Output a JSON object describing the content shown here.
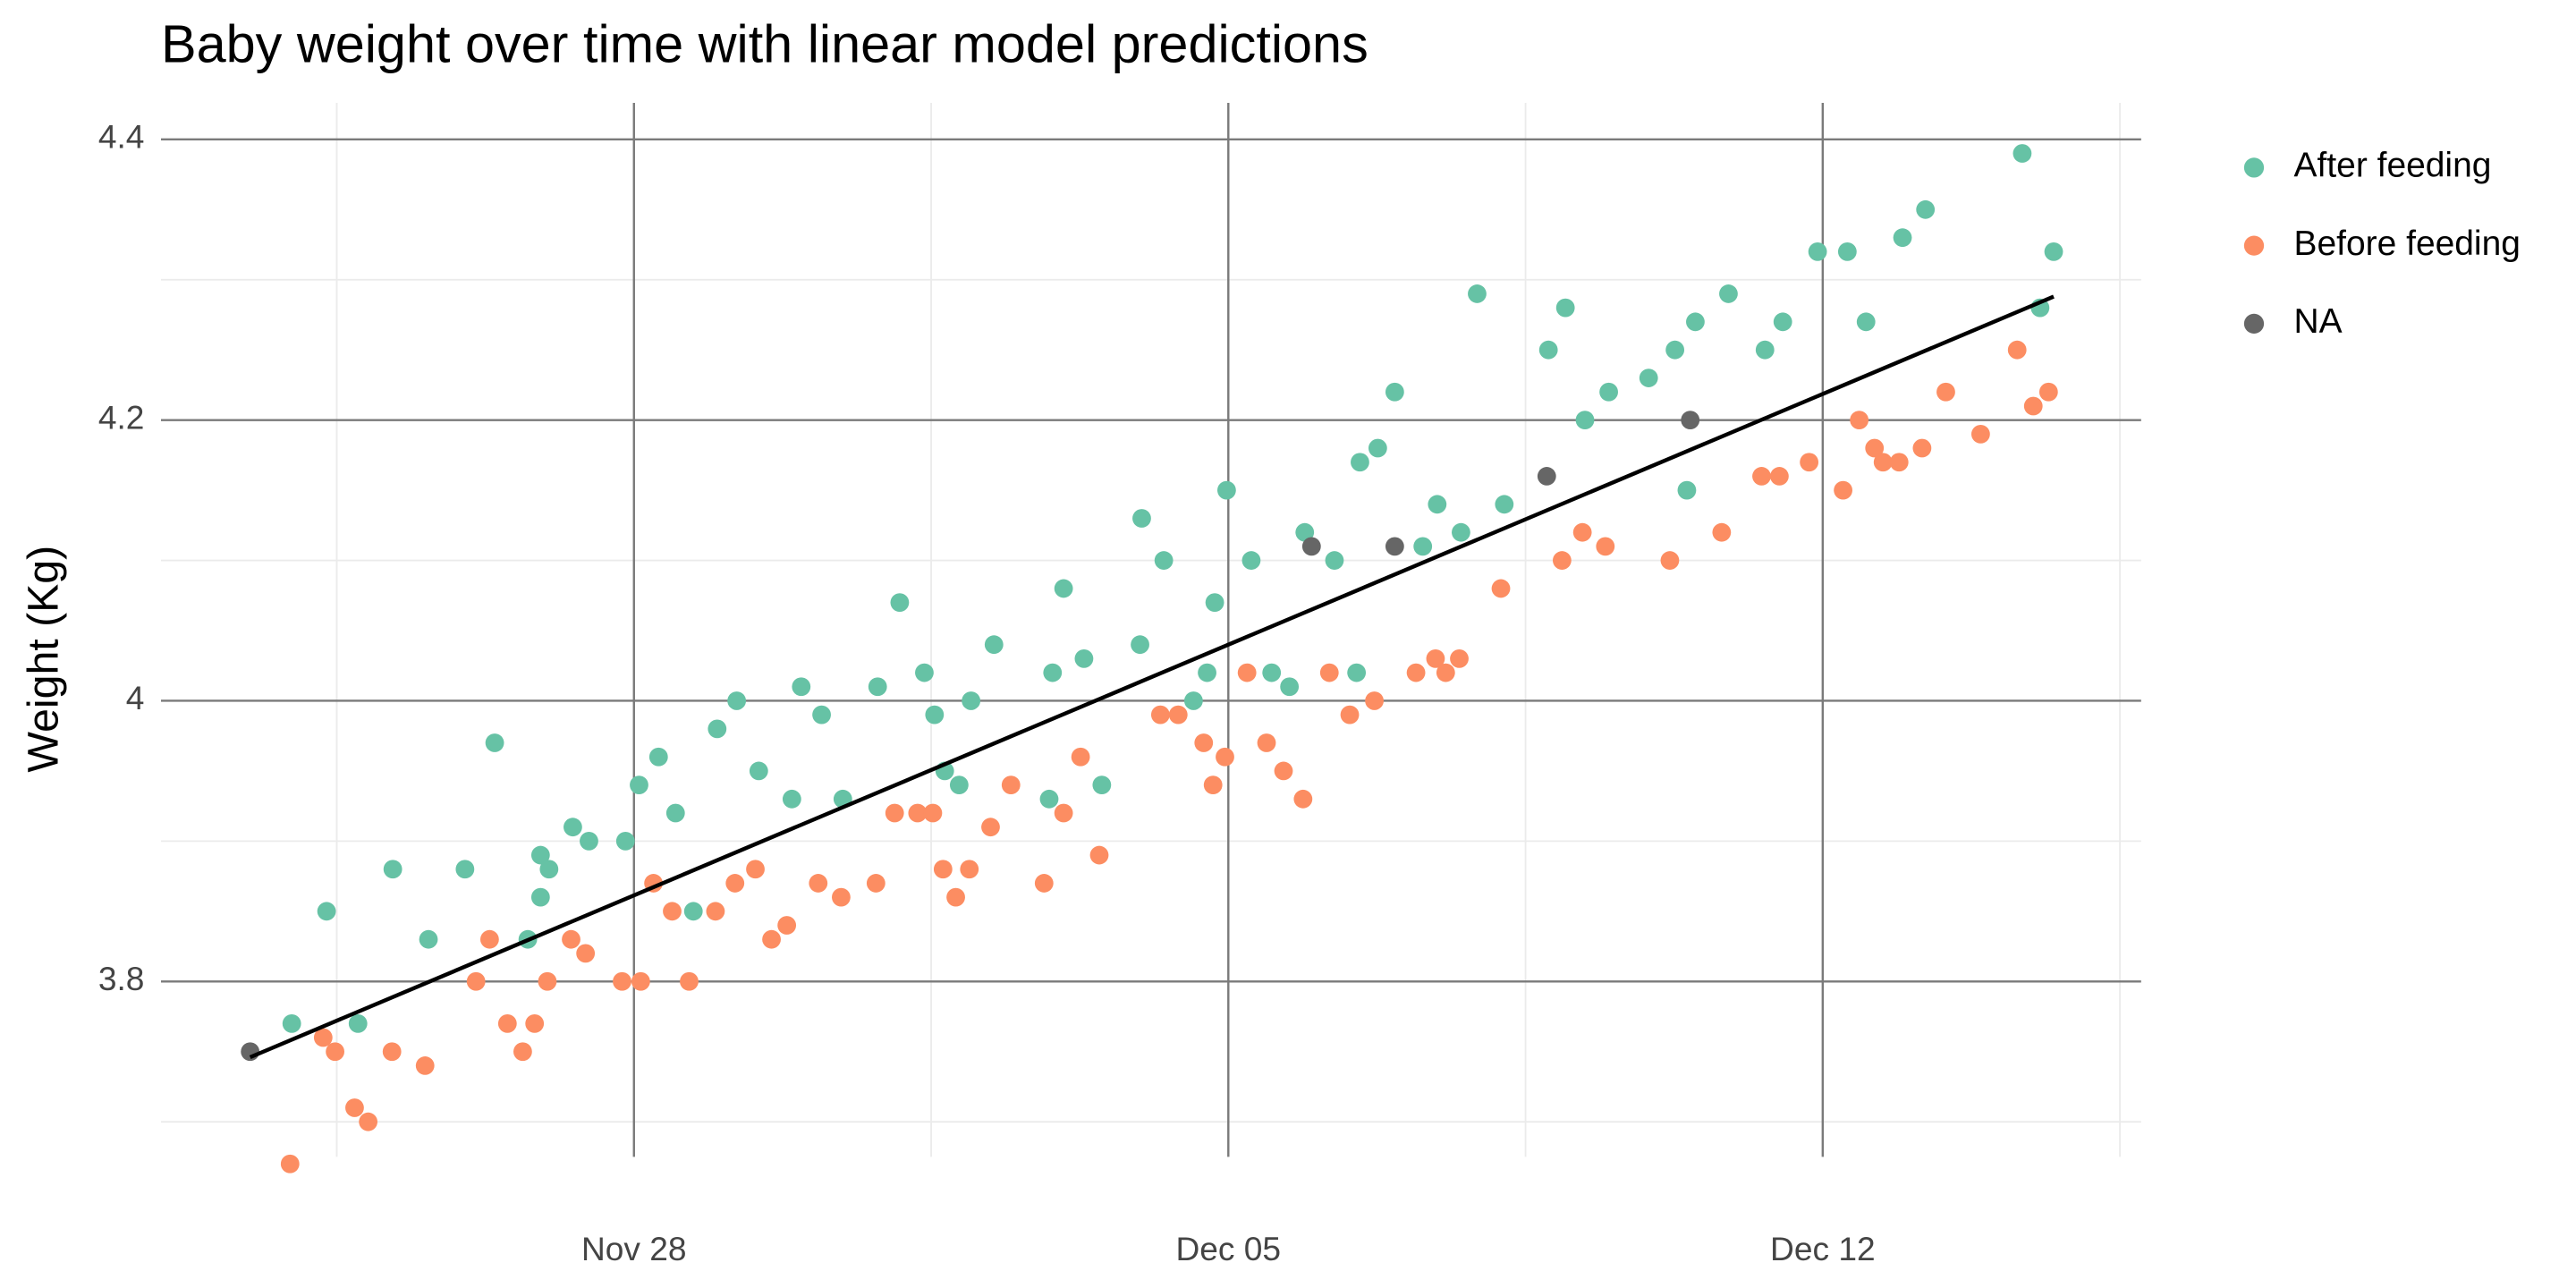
{
  "chart_data": {
    "type": "scatter",
    "title": "Baby weight over time with linear model predictions",
    "y_label": "Weight (Kg)",
    "xlim": [
      -5.57,
      17.75
    ],
    "xticks": [
      {
        "value": 0,
        "label": "Nov 28"
      },
      {
        "value": 7,
        "label": "Dec 05"
      },
      {
        "value": 14,
        "label": "Dec 12"
      }
    ],
    "ylim": [
      3.675,
      4.426
    ],
    "yticks": [
      3.8,
      4.0,
      4.2,
      4.4
    ],
    "grid": true,
    "legend": "right",
    "series": [
      {
        "name": "After feeding",
        "color": "#66c2a5",
        "x": [
          -4.03,
          -3.62,
          -3.25,
          -2.84,
          -2.42,
          -1.99,
          -1.64,
          -1.25,
          -1.1,
          -1.1,
          -1.0,
          -0.72,
          -0.53,
          -0.1,
          0.06,
          0.29,
          0.49,
          0.7,
          0.98,
          1.21,
          1.47,
          1.86,
          1.97,
          2.21,
          2.46,
          2.87,
          3.13,
          3.42,
          3.54,
          3.66,
          3.83,
          3.97,
          4.24,
          4.89,
          4.93,
          5.06,
          5.3,
          5.51,
          5.96,
          5.98,
          6.24,
          6.59,
          6.75,
          6.84,
          6.98,
          7.27,
          7.51,
          7.72,
          7.9,
          8.25,
          8.51,
          8.55,
          8.76,
          8.96,
          9.29,
          9.46,
          9.74,
          9.93,
          10.25,
          10.77,
          10.97,
          11.2,
          11.48,
          11.95,
          12.26,
          12.4,
          12.5,
          12.89,
          13.32,
          13.53,
          13.94,
          14.29,
          14.51,
          14.94,
          15.21,
          16.35,
          16.56,
          16.72
        ],
        "values": [
          3.77,
          3.85,
          3.77,
          3.88,
          3.83,
          3.88,
          3.97,
          3.83,
          3.86,
          3.89,
          3.88,
          3.91,
          3.9,
          3.9,
          3.94,
          3.96,
          3.92,
          3.85,
          3.98,
          4.0,
          3.95,
          3.93,
          4.01,
          3.99,
          3.93,
          4.01,
          4.07,
          4.02,
          3.99,
          3.95,
          3.94,
          4.0,
          4.04,
          3.93,
          4.02,
          4.08,
          4.03,
          3.94,
          4.04,
          4.13,
          4.1,
          4.0,
          4.02,
          4.07,
          4.15,
          4.1,
          4.02,
          4.01,
          4.12,
          4.1,
          4.02,
          4.17,
          4.18,
          4.22,
          4.11,
          4.14,
          4.12,
          4.29,
          4.14,
          4.25,
          4.28,
          4.2,
          4.22,
          4.23,
          4.25,
          4.15,
          4.27,
          4.29,
          4.25,
          4.27,
          4.32,
          4.32,
          4.27,
          4.33,
          4.35,
          4.39,
          4.28,
          4.32
        ]
      },
      {
        "name": "Before feeding",
        "color": "#fc8d62",
        "x": [
          -4.05,
          -3.66,
          -3.52,
          -3.29,
          -3.13,
          -2.85,
          -2.46,
          -1.86,
          -1.7,
          -1.49,
          -1.31,
          -1.17,
          -1.02,
          -0.74,
          -0.57,
          -0.14,
          0.08,
          0.23,
          0.45,
          0.65,
          0.96,
          1.19,
          1.43,
          1.62,
          1.8,
          2.17,
          2.44,
          2.85,
          3.07,
          3.34,
          3.52,
          3.64,
          3.79,
          3.95,
          4.2,
          4.44,
          4.83,
          5.06,
          5.26,
          5.48,
          6.2,
          6.41,
          6.71,
          6.82,
          6.96,
          7.22,
          7.45,
          7.65,
          7.88,
          8.19,
          8.43,
          8.72,
          9.21,
          9.44,
          9.56,
          9.72,
          10.21,
          10.93,
          11.17,
          11.44,
          12.2,
          12.81,
          13.28,
          13.49,
          13.84,
          14.24,
          14.43,
          14.61,
          14.71,
          14.9,
          15.17,
          15.45,
          15.86,
          16.29,
          16.48,
          16.66
        ],
        "values": [
          3.67,
          3.76,
          3.75,
          3.71,
          3.7,
          3.75,
          3.74,
          3.8,
          3.83,
          3.77,
          3.75,
          3.77,
          3.8,
          3.83,
          3.82,
          3.8,
          3.8,
          3.87,
          3.85,
          3.8,
          3.85,
          3.87,
          3.88,
          3.83,
          3.84,
          3.87,
          3.86,
          3.87,
          3.92,
          3.92,
          3.92,
          3.88,
          3.86,
          3.88,
          3.91,
          3.94,
          3.87,
          3.92,
          3.96,
          3.89,
          3.99,
          3.99,
          3.97,
          3.94,
          3.96,
          4.02,
          3.97,
          3.95,
          3.93,
          4.02,
          3.99,
          4.0,
          4.02,
          4.03,
          4.02,
          4.03,
          4.08,
          4.1,
          4.12,
          4.11,
          4.1,
          4.12,
          4.16,
          4.16,
          4.17,
          4.15,
          4.2,
          4.18,
          4.17,
          4.17,
          4.18,
          4.22,
          4.19,
          4.25,
          4.21,
          4.22
        ]
      },
      {
        "name": "NA",
        "color": "#666666",
        "x": [
          -4.52,
          7.98,
          8.96,
          10.75,
          12.44
        ],
        "values": [
          3.75,
          4.11,
          4.11,
          4.16,
          4.2
        ]
      }
    ],
    "model_line": {
      "color": "#000000",
      "x": [
        -4.52,
        16.72
      ],
      "values": [
        3.746,
        4.288
      ]
    }
  }
}
